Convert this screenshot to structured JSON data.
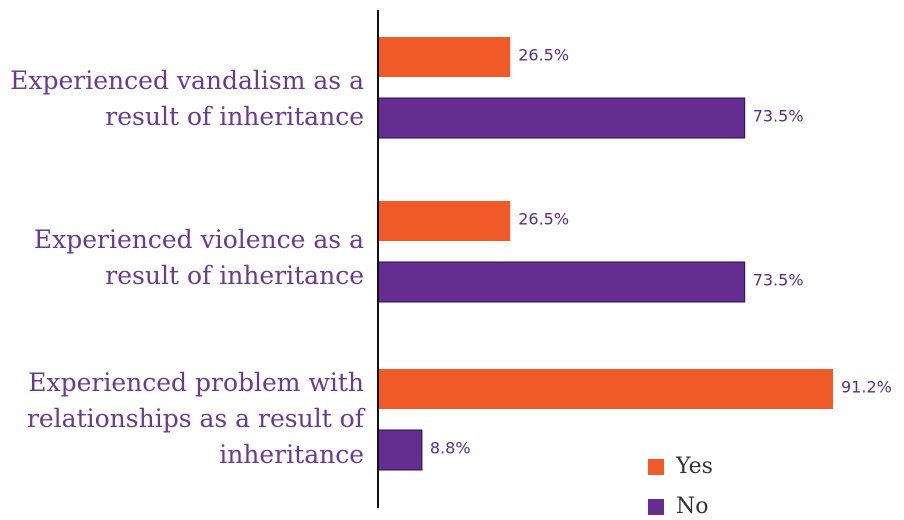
{
  "chart_data": {
    "type": "bar",
    "orientation": "horizontal",
    "categories": [
      [
        "Experienced vandalism as a",
        "result of inheritance"
      ],
      [
        "Experienced violence as a",
        "result of inheritance"
      ],
      [
        "Experienced problem with",
        "relationships as a result of",
        "inheritance"
      ]
    ],
    "series": [
      {
        "name": "Yes",
        "values": [
          26.5,
          26.5,
          91.2
        ],
        "labels": [
          "26.5%",
          "26.5%",
          "91.2%"
        ],
        "color": "#f05a28"
      },
      {
        "name": "No",
        "values": [
          73.5,
          73.5,
          8.8
        ],
        "labels": [
          "73.5%",
          "73.5%",
          "8.8%"
        ],
        "color": "#662d91"
      }
    ],
    "xlim": [
      0,
      100
    ],
    "grid": false,
    "legend": "bottom-right"
  }
}
